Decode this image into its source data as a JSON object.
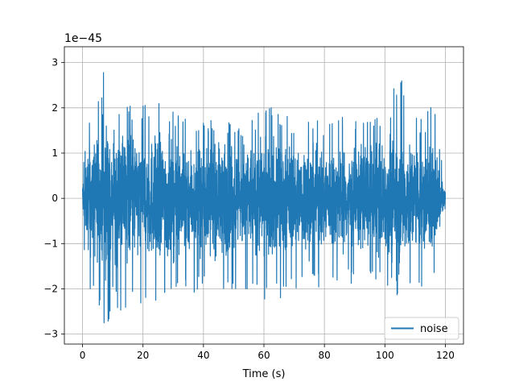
{
  "chart_data": {
    "type": "line",
    "title": "",
    "xlabel": "Time (s)",
    "ylabel": "",
    "offset_text": "1e−45",
    "xlim": [
      -6,
      126
    ],
    "ylim": [
      -3.22,
      3.35
    ],
    "xticks": [
      0,
      20,
      40,
      60,
      80,
      100,
      120
    ],
    "xtick_labels": [
      "0",
      "20",
      "40",
      "60",
      "80",
      "100",
      "120"
    ],
    "yticks": [
      -3,
      -2,
      -1,
      0,
      1,
      2,
      3
    ],
    "ytick_labels": [
      "−3",
      "−2",
      "−1",
      "0",
      "1",
      "2",
      "3"
    ],
    "grid": true,
    "legend": {
      "position": "lower-right"
    },
    "series": [
      {
        "name": "noise",
        "color": "#1f77b4",
        "x_range": [
          0,
          120
        ],
        "y_unit_scale": "1e-45",
        "envelope": {
          "x": [
            0,
            2,
            8,
            10,
            14,
            20,
            28,
            30,
            40,
            50,
            55,
            60,
            70,
            75,
            80,
            88,
            90,
            100,
            103,
            110,
            113,
            116,
            120
          ],
          "upper": [
            0.8,
            1.6,
            3.05,
            1.8,
            2.2,
            2.05,
            2.2,
            1.9,
            1.8,
            1.65,
            1.75,
            2.2,
            1.7,
            2.1,
            1.95,
            1.8,
            1.7,
            2.0,
            2.9,
            2.1,
            2.2,
            2.3,
            0.2
          ],
          "lower": [
            -0.8,
            -2.2,
            -2.9,
            -2.3,
            -2.6,
            -2.3,
            -2.5,
            -2.25,
            -2.0,
            -2.3,
            -2.1,
            -2.4,
            -2.1,
            -2.0,
            -2.1,
            -1.9,
            -2.0,
            -2.0,
            -2.2,
            -1.9,
            -2.1,
            -1.9,
            -0.3
          ]
        }
      }
    ]
  }
}
